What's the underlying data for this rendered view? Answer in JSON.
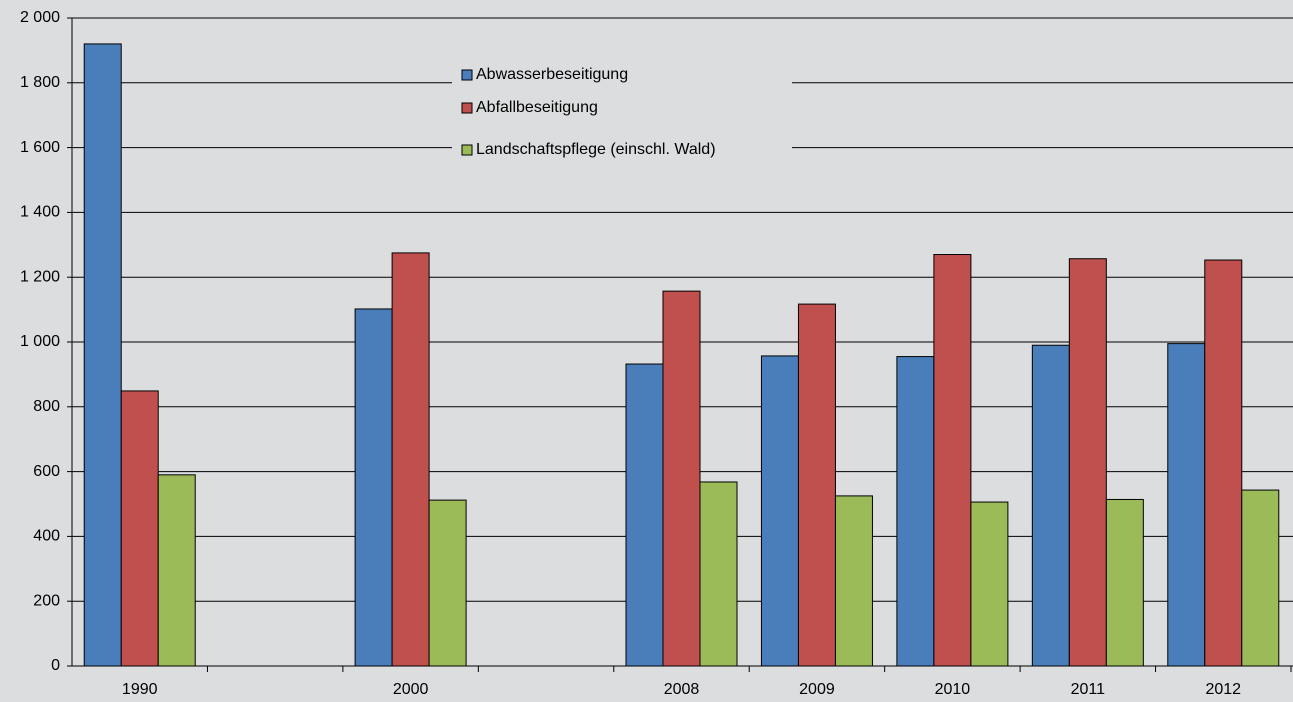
{
  "chart_data": {
    "type": "bar",
    "categories": [
      "1990",
      null,
      "2000",
      null,
      "2008",
      "2009",
      "2010",
      "2011",
      "2012"
    ],
    "series": [
      {
        "name": "Abwasserbeseitigung",
        "color": "#4a7ebb",
        "values": [
          1920,
          null,
          1102,
          null,
          932,
          957,
          955,
          990,
          995
        ]
      },
      {
        "name": "Abfallbeseitigung",
        "color": "#c0504d",
        "values": [
          849,
          null,
          1275,
          null,
          1157,
          1117,
          1270,
          1257,
          1253
        ]
      },
      {
        "name": "Landschaftspflege (einschl. Wald)",
        "color": "#9bbb59",
        "values": [
          590,
          null,
          512,
          null,
          568,
          525,
          506,
          514,
          543
        ]
      }
    ],
    "ylim": [
      0,
      2000
    ],
    "yticks": [
      0,
      200,
      400,
      600,
      800,
      {
        "value": 1000,
        "label": "1 000"
      },
      {
        "value": 1200,
        "label": "1 200"
      },
      {
        "value": 1400,
        "label": "1 400"
      },
      {
        "value": 1600,
        "label": "1 600"
      },
      {
        "value": 1800,
        "label": "1 800"
      },
      {
        "value": 2000,
        "label": "2 000"
      }
    ],
    "grid": true,
    "legend": "top"
  }
}
